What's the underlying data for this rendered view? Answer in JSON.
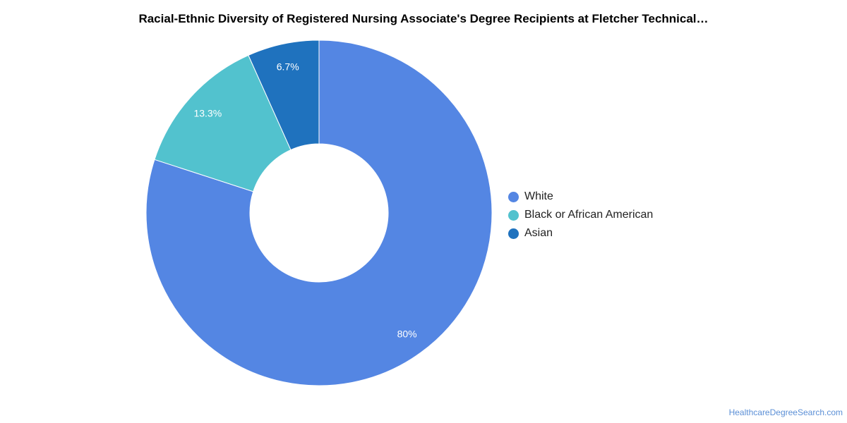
{
  "chart_data": {
    "type": "pie",
    "title": "Racial-Ethnic Diversity of Registered Nursing Associate's Degree Recipients at Fletcher Technical…",
    "categories": [
      "White",
      "Black or African American",
      "Asian"
    ],
    "values": [
      80,
      13.3,
      6.7
    ],
    "data_labels": [
      "80%",
      "13.3%",
      "6.7%"
    ],
    "colors": [
      "#5486e3",
      "#52c2ce",
      "#1f72be"
    ],
    "legend_position": "right"
  },
  "footer": {
    "source": "HealthcareDegreeSearch.com"
  }
}
